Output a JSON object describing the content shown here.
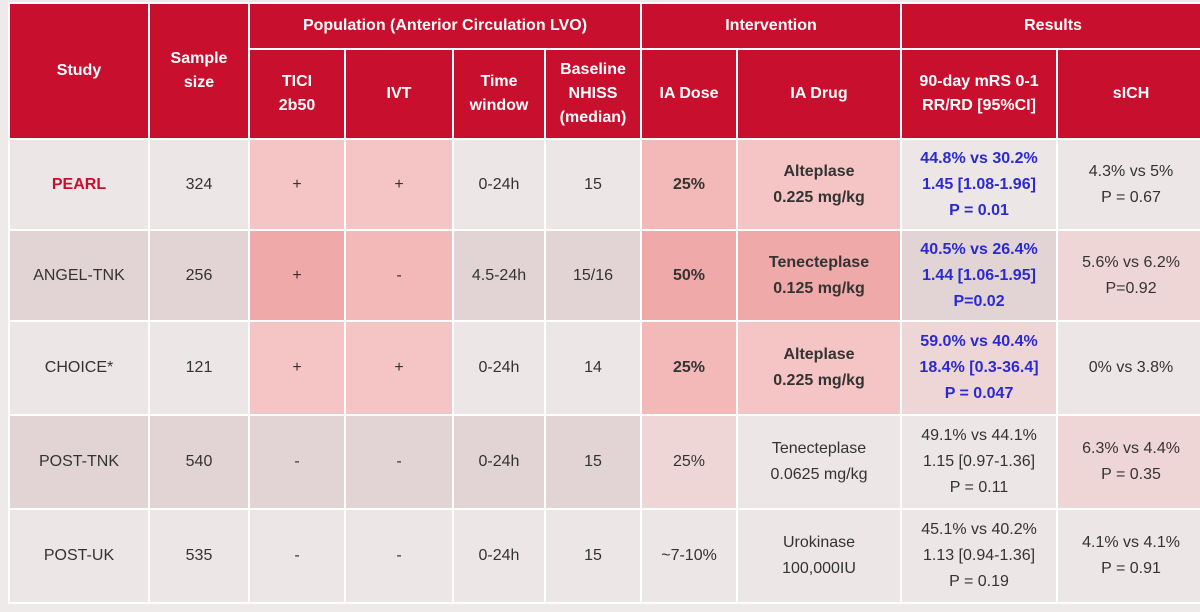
{
  "header": {
    "study": "Study",
    "sample_size": [
      "Sample",
      "size"
    ],
    "population": "Population (Anterior Circulation LVO)",
    "intervention": "Intervention",
    "results": "Results",
    "tici": [
      "TICI",
      "2b50"
    ],
    "ivt": "IVT",
    "time_window": [
      "Time",
      "window"
    ],
    "baseline_nihss": [
      "Baseline",
      "NHISS",
      "(median)"
    ],
    "ia_dose": "IA Dose",
    "ia_drug": "IA Drug",
    "mrs": [
      "90-day mRS 0-1",
      "RR/RD [95%CI]"
    ],
    "sich": "sICH"
  },
  "rows": [
    {
      "study": "PEARL",
      "sample": "324",
      "tici": "+",
      "ivt": "+",
      "time": "0-24h",
      "nihss": "15",
      "dose": "25%",
      "drug": [
        "Alteplase",
        "0.225 mg/kg"
      ],
      "mrs": [
        "44.8% vs 30.2%",
        "1.45 [1.08-1.96]",
        "P = 0.01"
      ],
      "sich": [
        "4.3% vs 5%",
        "P = 0.67"
      ]
    },
    {
      "study": "ANGEL-TNK",
      "sample": "256",
      "tici": "+",
      "ivt": "-",
      "time": "4.5-24h",
      "nihss": "15/16",
      "dose": "50%",
      "drug": [
        "Tenecteplase",
        "0.125 mg/kg"
      ],
      "mrs": [
        "40.5% vs 26.4%",
        "1.44 [1.06-1.95]",
        "P=0.02"
      ],
      "sich": [
        "5.6% vs 6.2%",
        "P=0.92"
      ]
    },
    {
      "study": "CHOICE*",
      "sample": "121",
      "tici": "+",
      "ivt": "+",
      "time": "0-24h",
      "nihss": "14",
      "dose": "25%",
      "drug": [
        "Alteplase",
        "0.225 mg/kg"
      ],
      "mrs": [
        "59.0% vs 40.4%",
        "18.4% [0.3-36.4]",
        "P = 0.047"
      ],
      "sich": [
        "0% vs 3.8%"
      ]
    },
    {
      "study": "POST-TNK",
      "sample": "540",
      "tici": "-",
      "ivt": "-",
      "time": "0-24h",
      "nihss": "15",
      "dose": "25%",
      "drug": [
        "Tenecteplase",
        "0.0625 mg/kg"
      ],
      "mrs": [
        "49.1% vs 44.1%",
        "1.15 [0.97-1.36]",
        "P = 0.11"
      ],
      "sich": [
        "6.3% vs 4.4%",
        "P = 0.35"
      ]
    },
    {
      "study": "POST-UK",
      "sample": "535",
      "tici": "-",
      "ivt": "-",
      "time": "0-24h",
      "nihss": "15",
      "dose": "~7-10%",
      "drug": [
        "Urokinase",
        "100,000IU"
      ],
      "mrs": [
        "45.1% vs 40.2%",
        "1.13 [0.94-1.36]",
        "P = 0.19"
      ],
      "sich": [
        "4.1% vs 4.1%",
        "P = 0.91"
      ]
    }
  ]
}
